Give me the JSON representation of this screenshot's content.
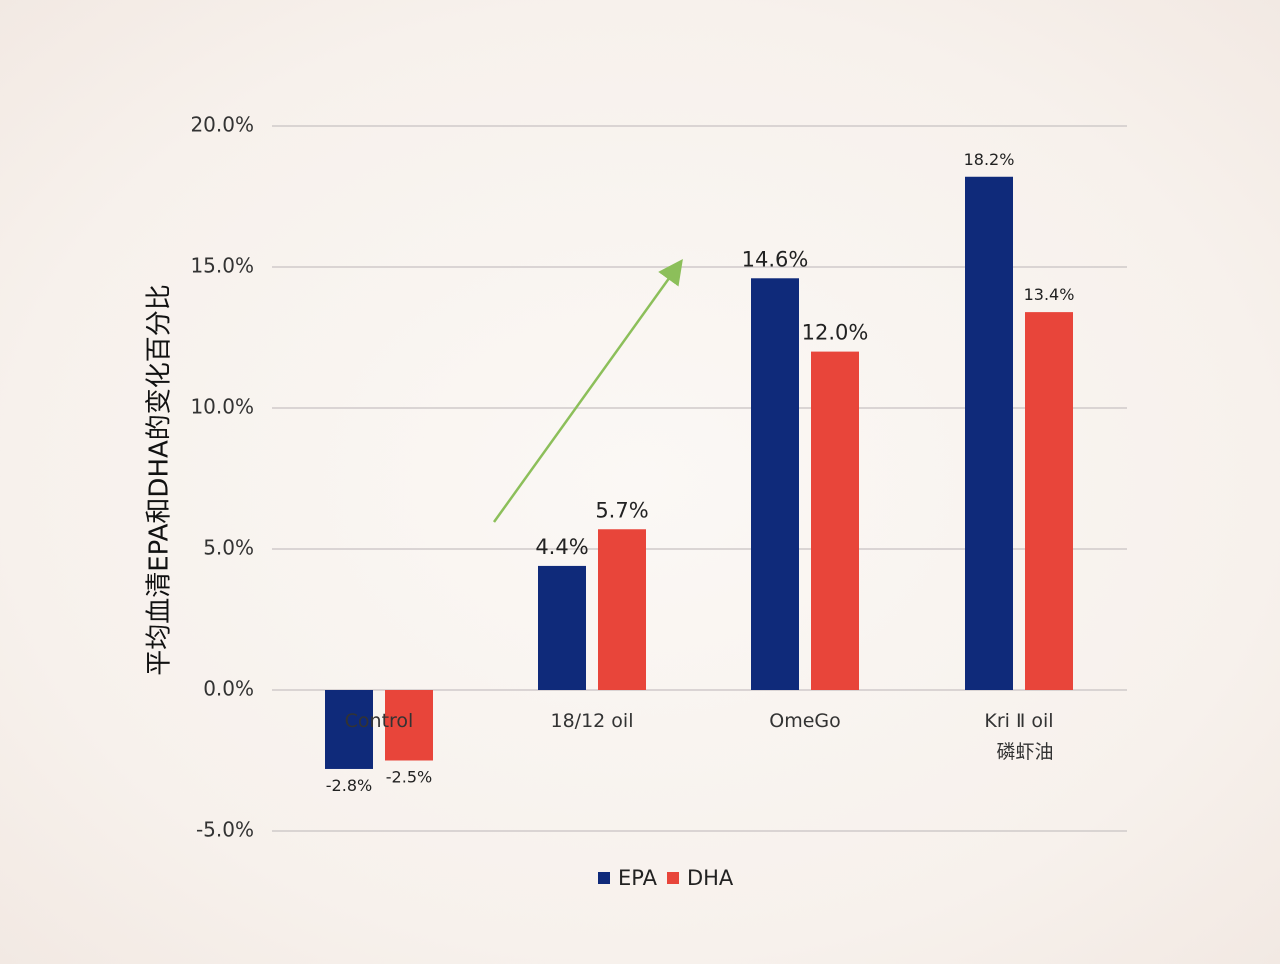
{
  "chart_data": {
    "type": "bar",
    "categories": [
      "Control",
      "18/12 oil",
      "OmeGo",
      "Kri Ⅱ oil"
    ],
    "category_sublabels": [
      "",
      "",
      "",
      "磷虾油"
    ],
    "series": [
      {
        "name": "EPA",
        "values": [
          -2.8,
          4.4,
          14.6,
          18.2
        ],
        "labels": [
          "-2.8%",
          "4.4%",
          "14.6%",
          "18.2%"
        ]
      },
      {
        "name": "DHA",
        "values": [
          -2.5,
          5.7,
          12.0,
          13.4
        ],
        "labels": [
          "-2.5%",
          "5.7%",
          "12.0%",
          "13.4%"
        ]
      }
    ],
    "title": "",
    "xlabel": "",
    "ylabel": "平均血清EPA和DHA的变化百分比",
    "ylim": [
      -5,
      20
    ],
    "yticks": [
      "-5.0%",
      "0.0%",
      "5.0%",
      "10.0%",
      "15.0%",
      "20.0%"
    ],
    "ytick_values": [
      -5,
      0,
      5,
      10,
      15,
      20
    ],
    "grid": true,
    "legend_position": "bottom",
    "colors": {
      "EPA": "#0f2a7a",
      "DHA": "#e8453a",
      "arrow": "#8cbf5a",
      "grid": "#cfcaca"
    },
    "annotations": [
      {
        "type": "arrow",
        "from_category": "Control",
        "to_category": "OmeGo",
        "description": "upward trend arrow"
      }
    ]
  }
}
